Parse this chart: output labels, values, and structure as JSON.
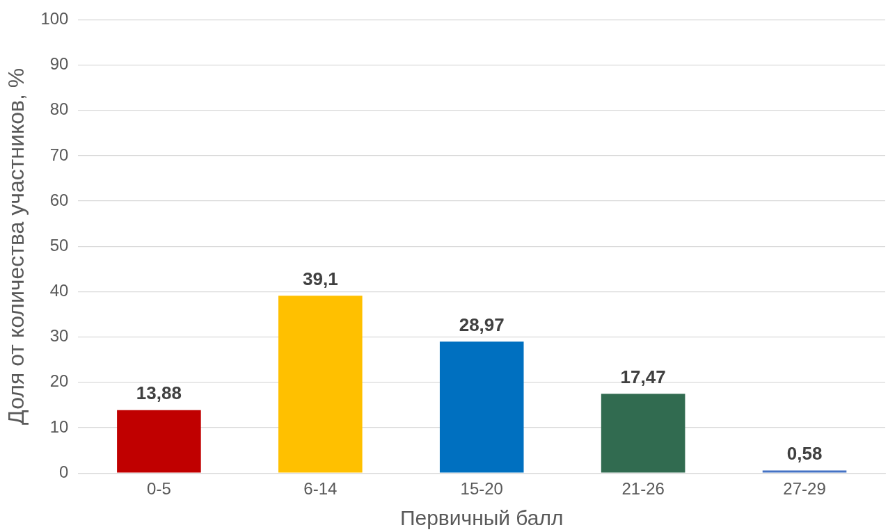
{
  "chart_data": {
    "type": "bar",
    "xlabel": "Первичный балл",
    "ylabel": "Доля от количества участников, %",
    "categories": [
      "0-5",
      "6-14",
      "15-20",
      "21-26",
      "27-29"
    ],
    "values": [
      13.88,
      39.1,
      28.97,
      17.47,
      0.58
    ],
    "colors": [
      "#c00000",
      "#ffc000",
      "#0070c0",
      "#316b50",
      "#4472c4"
    ],
    "value_labels": [
      "13,88",
      "39,1",
      "28,97",
      "17,47",
      "0,58"
    ],
    "ylim": [
      0,
      100
    ],
    "yticks": [
      0,
      10,
      20,
      30,
      40,
      50,
      60,
      70,
      80,
      90,
      100
    ],
    "grid": "y",
    "legend": false
  }
}
